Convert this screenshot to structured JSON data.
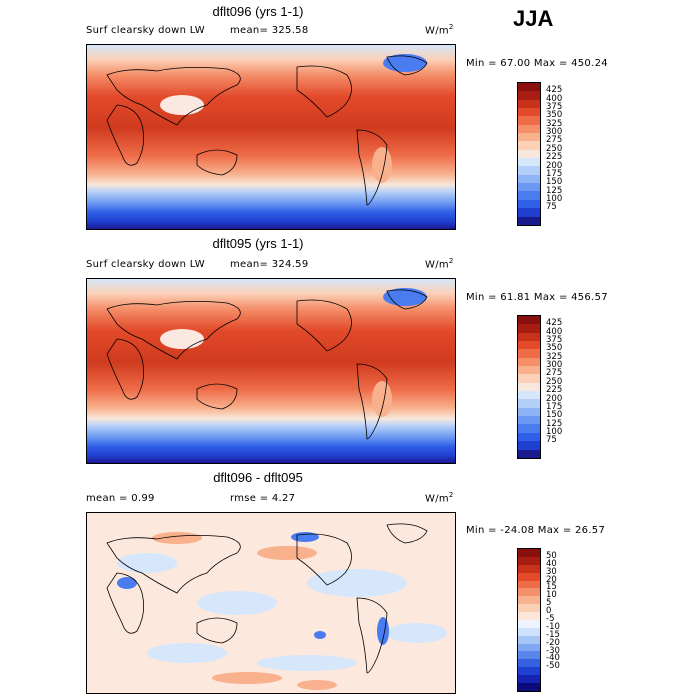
{
  "season": "JJA",
  "panels": [
    {
      "title": "dflt096 (yrs 1-1)",
      "variable": "Surf clearsky down LW",
      "mean_label": "mean= 325.58",
      "units": "W/m",
      "units_sup": "2",
      "range_label": "Min =  67.00 Max = 450.24",
      "colors": [
        "#1a1a8f",
        "#1f3fd0",
        "#2f5fe6",
        "#4a7cf0",
        "#6b98f2",
        "#8fb4f5",
        "#b3cff8",
        "#d6e7fb",
        "#f7e7dc",
        "#fbd0b6",
        "#f8b08d",
        "#f5906b",
        "#ef6c48",
        "#e24a2a",
        "#c8321b",
        "#a81d12",
        "#8a1010"
      ],
      "labels": [
        "425",
        "400",
        "375",
        "350",
        "325",
        "300",
        "275",
        "250",
        "225",
        "200",
        "175",
        "150",
        "125",
        "100",
        "75"
      ]
    },
    {
      "title": "dflt095 (yrs 1-1)",
      "variable": "Surf clearsky down LW",
      "mean_label": "mean= 324.59",
      "units": "W/m",
      "units_sup": "2",
      "range_label": "Min =  61.81 Max = 456.57",
      "colors": [
        "#1a1a8f",
        "#1f3fd0",
        "#2f5fe6",
        "#4a7cf0",
        "#6b98f2",
        "#8fb4f5",
        "#b3cff8",
        "#d6e7fb",
        "#f7e7dc",
        "#fbd0b6",
        "#f8b08d",
        "#f5906b",
        "#ef6c48",
        "#e24a2a",
        "#c8321b",
        "#a81d12",
        "#8a1010"
      ],
      "labels": [
        "425",
        "400",
        "375",
        "350",
        "325",
        "300",
        "275",
        "250",
        "225",
        "200",
        "175",
        "150",
        "125",
        "100",
        "75"
      ]
    },
    {
      "title": "dflt096 - dflt095",
      "mean_label": "mean =    0.99",
      "rmse_label": "rmse =    4.27",
      "units": "W/m",
      "units_sup": "2",
      "range_label": "Min = -24.08 Max =  26.57",
      "colors": [
        "#0b0b7a",
        "#1424b0",
        "#1f3fd0",
        "#3560e0",
        "#5a86ec",
        "#7fa7f2",
        "#a6c6f6",
        "#cfe2fb",
        "#eef4ff",
        "#fde6d8",
        "#fbcfb4",
        "#f8b290",
        "#f5906b",
        "#ef6c48",
        "#e24a2a",
        "#c8321b",
        "#a81d12",
        "#8a1010"
      ],
      "labels": [
        "50",
        "40",
        "30",
        "20",
        "15",
        "10",
        "5",
        "0",
        "-5",
        "-10",
        "-15",
        "-20",
        "-30",
        "-40",
        "-50"
      ]
    }
  ]
}
